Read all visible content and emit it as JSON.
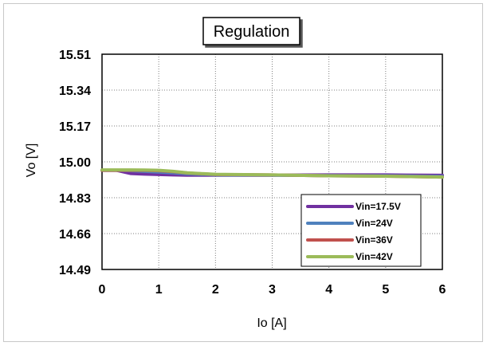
{
  "chart_data": {
    "type": "line",
    "title": "Regulation",
    "xlabel": "Io  [A]",
    "ylabel": "Vo  [V]",
    "xlim": [
      0,
      6
    ],
    "ylim": [
      14.49,
      15.51
    ],
    "x_ticks": [
      "0",
      "1",
      "2",
      "3",
      "4",
      "5",
      "6"
    ],
    "y_ticks": [
      "15.51",
      "15.34",
      "15.17",
      "15.00",
      "14.83",
      "14.66",
      "14.49"
    ],
    "grid": true,
    "legend_position": "bottom-right",
    "x": [
      0,
      0.25,
      0.5,
      0.75,
      1,
      1.25,
      1.5,
      2,
      3,
      4,
      5,
      6
    ],
    "series": [
      {
        "name": "Vin=17.5V",
        "color": "#7030a0",
        "values": [
          14.96,
          14.96,
          14.945,
          14.942,
          14.94,
          14.938,
          14.937,
          14.937,
          14.937,
          14.938,
          14.938,
          14.936
        ]
      },
      {
        "name": "Vin=24V",
        "color": "#4f81bd",
        "values": [
          14.96,
          14.96,
          14.958,
          14.955,
          14.952,
          14.948,
          14.943,
          14.938,
          14.937,
          14.935,
          14.934,
          14.931
        ]
      },
      {
        "name": "Vin=36V",
        "color": "#c0504d",
        "values": [
          14.96,
          14.96,
          14.96,
          14.96,
          14.958,
          14.954,
          14.947,
          14.94,
          14.938,
          14.934,
          14.932,
          14.928
        ]
      },
      {
        "name": "Vin=42V",
        "color": "#9bbb59",
        "values": [
          14.962,
          14.962,
          14.962,
          14.961,
          14.96,
          14.955,
          14.948,
          14.941,
          14.938,
          14.934,
          14.932,
          14.928
        ]
      }
    ]
  }
}
